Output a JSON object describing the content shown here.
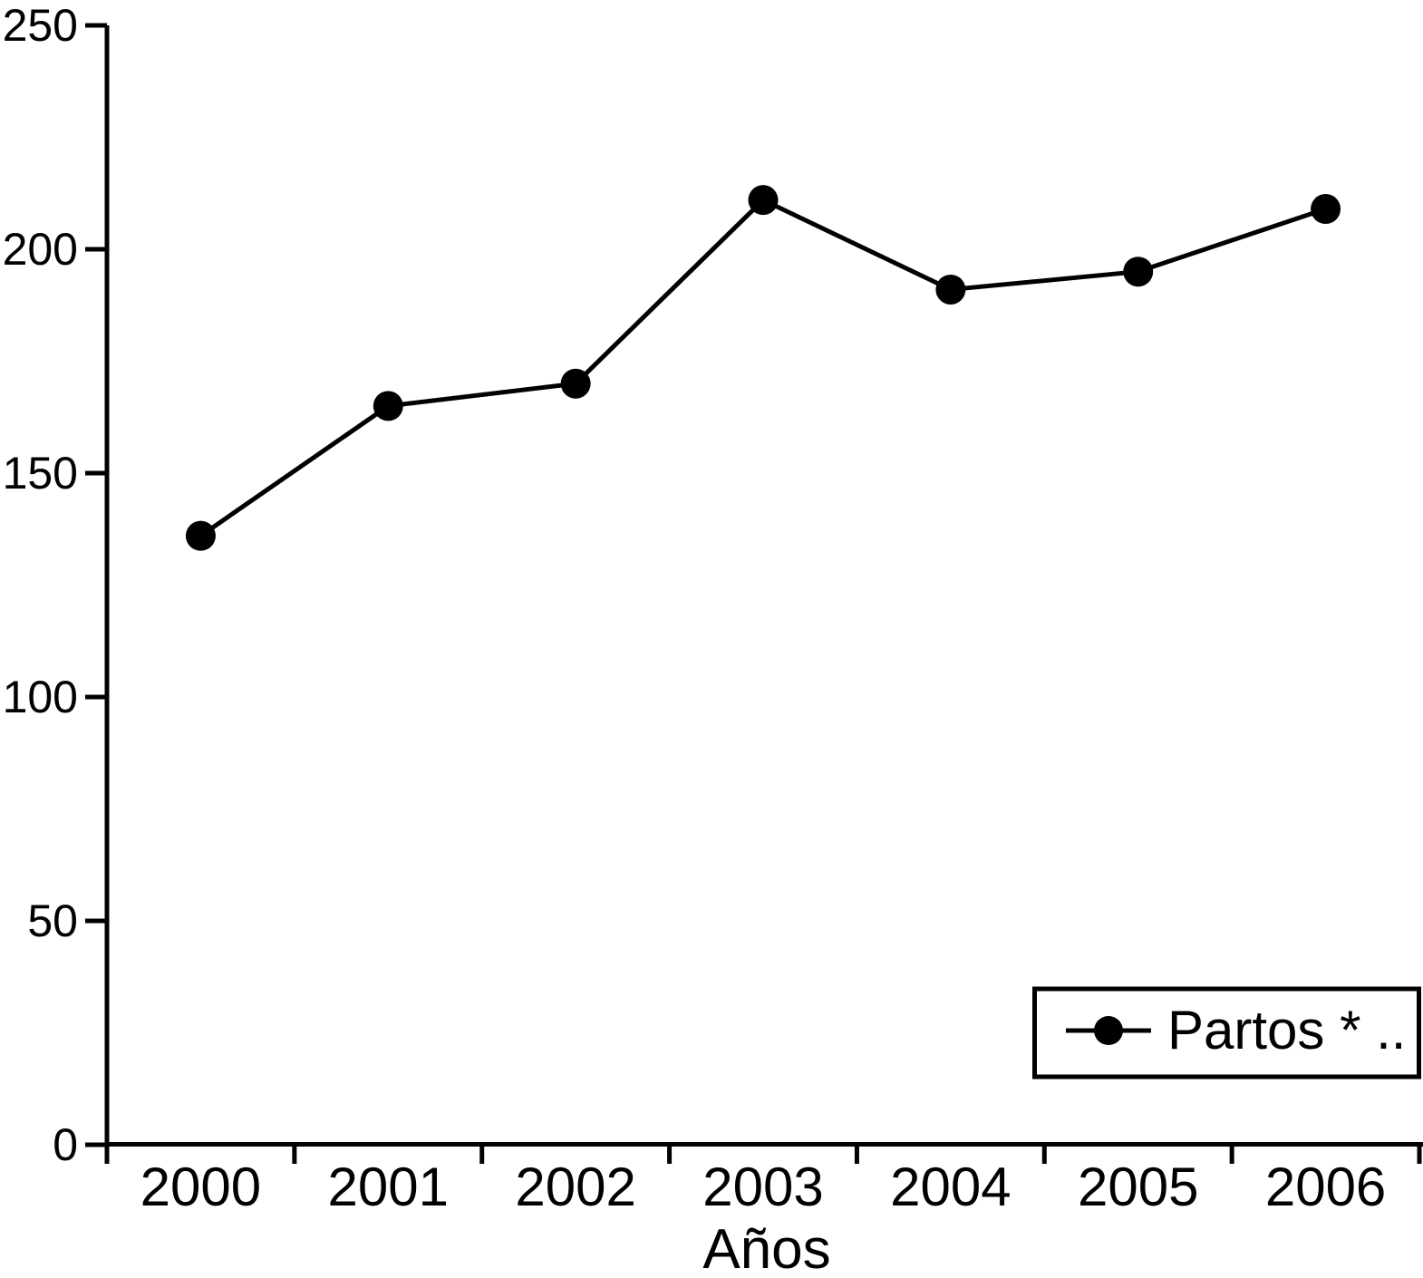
{
  "chart_data": {
    "type": "line",
    "title": "",
    "xlabel": "Años",
    "ylabel": "",
    "categories": [
      "2000",
      "2001",
      "2002",
      "2003",
      "2004",
      "2005",
      "2006"
    ],
    "series": [
      {
        "name": "Partos * ..",
        "marker": "filled-circle",
        "color": "#000000",
        "values": [
          136,
          165,
          170,
          211,
          191,
          195,
          209
        ]
      }
    ],
    "ylim": [
      0,
      250
    ],
    "yticks": [
      0,
      50,
      100,
      150,
      200,
      250
    ],
    "grid": false,
    "legend_position": "bottom-right",
    "legend_border": true,
    "background_color": "#ffffff",
    "axis_color": "#000000"
  }
}
